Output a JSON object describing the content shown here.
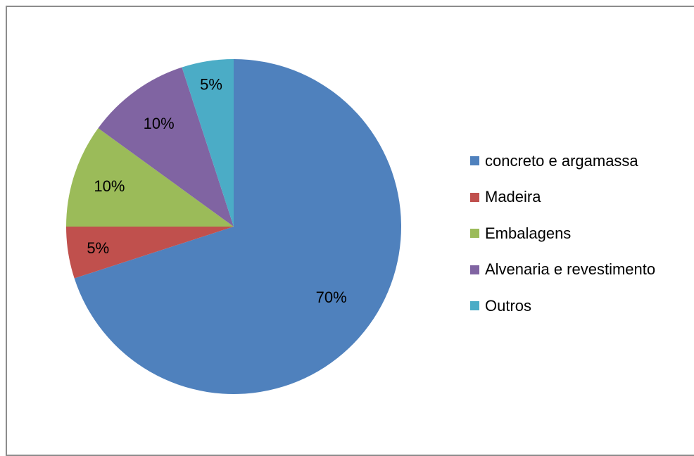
{
  "chart_data": {
    "type": "pie",
    "categories": [
      "concreto e argamassa",
      "Madeira",
      "Embalagens",
      "Alvenaria e revestimento",
      "Outros"
    ],
    "values": [
      70,
      5,
      10,
      10,
      5
    ],
    "data_labels": [
      "70%",
      "5%",
      "10%",
      "10%",
      "5%"
    ],
    "colors": [
      "#4f81bd",
      "#c0504d",
      "#9bbb59",
      "#8064a2",
      "#4bacc6"
    ],
    "title": "",
    "legend_position": "right",
    "start_angle": "top",
    "direction": "clockwise"
  }
}
